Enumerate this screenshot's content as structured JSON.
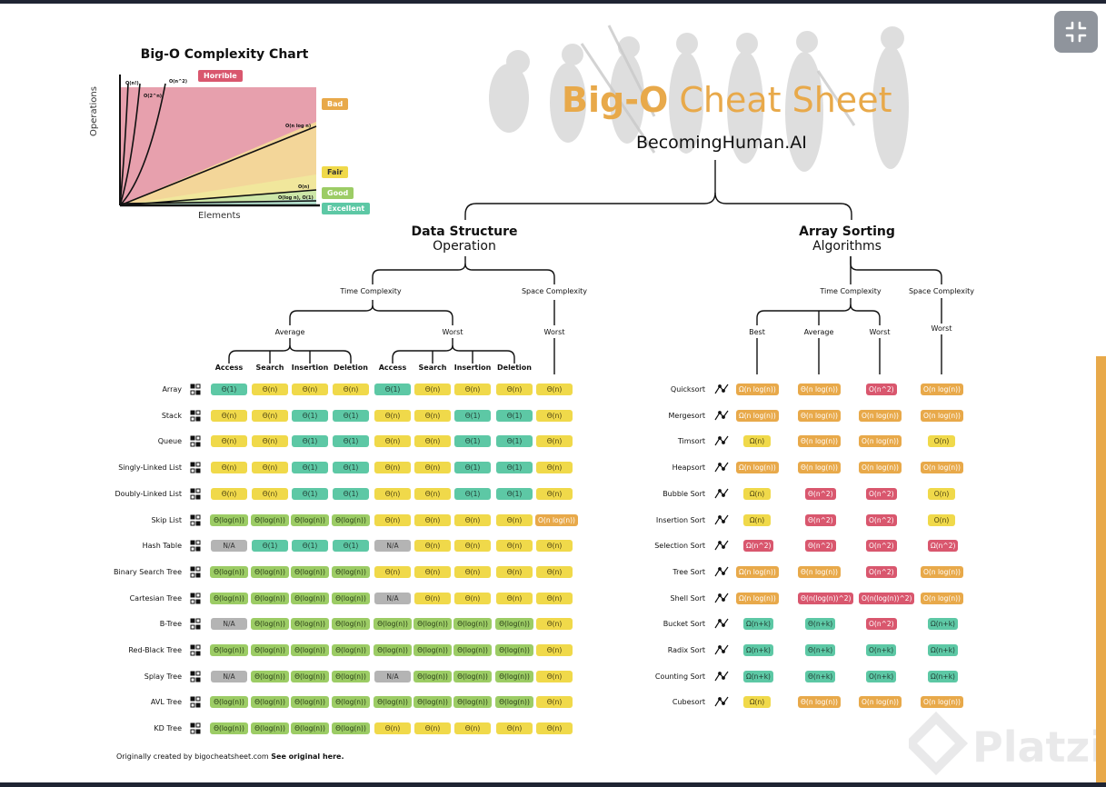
{
  "title": {
    "part1": "Big-O",
    "part2": " Cheat Sheet"
  },
  "subtitle": "BecomingHuman.AI",
  "colors": {
    "horrible": "#d9576e",
    "bad": "#e8a94a",
    "fair": "#f0d94a",
    "good": "#9ccc65",
    "excellent": "#5dc8a5",
    "na": "#b4b4b4",
    "accent": "#e8a94a"
  },
  "complexity_chart": {
    "title": "Big-O Complexity Chart",
    "ylabel": "Operations",
    "xlabel": "Elements",
    "legend": [
      "Horrible",
      "Bad",
      "Fair",
      "Good",
      "Excellent"
    ],
    "curve_labels": [
      "O(n!)",
      "O(2^n)",
      "O(n^2)",
      "O(n log n)",
      "O(n)",
      "O(log n), O(1)"
    ]
  },
  "ds": {
    "title": "Data Structure",
    "subtitle": "Operation",
    "time_label": "Time Complexity",
    "space_label": "Space Complexity",
    "average_label": "Average",
    "worst_label": "Worst",
    "space_worst_label": "Worst",
    "columns": [
      "Access",
      "Search",
      "Insertion",
      "Deletion",
      "Access",
      "Search",
      "Insertion",
      "Deletion"
    ],
    "rows": [
      {
        "name": "Array",
        "icon": "array-icon",
        "cells": [
          [
            "Θ(1)",
            "e"
          ],
          [
            "Θ(n)",
            "f"
          ],
          [
            "Θ(n)",
            "f"
          ],
          [
            "Θ(n)",
            "f"
          ],
          [
            "Θ(1)",
            "e"
          ],
          [
            "Θ(n)",
            "f"
          ],
          [
            "Θ(n)",
            "f"
          ],
          [
            "Θ(n)",
            "f"
          ],
          [
            "Θ(n)",
            "f"
          ]
        ]
      },
      {
        "name": "Stack",
        "icon": "stack-icon",
        "cells": [
          [
            "Θ(n)",
            "f"
          ],
          [
            "Θ(n)",
            "f"
          ],
          [
            "Θ(1)",
            "e"
          ],
          [
            "Θ(1)",
            "e"
          ],
          [
            "Θ(n)",
            "f"
          ],
          [
            "Θ(n)",
            "f"
          ],
          [
            "Θ(1)",
            "e"
          ],
          [
            "Θ(1)",
            "e"
          ],
          [
            "Θ(n)",
            "f"
          ]
        ]
      },
      {
        "name": "Queue",
        "icon": "queue-icon",
        "cells": [
          [
            "Θ(n)",
            "f"
          ],
          [
            "Θ(n)",
            "f"
          ],
          [
            "Θ(1)",
            "e"
          ],
          [
            "Θ(1)",
            "e"
          ],
          [
            "Θ(n)",
            "f"
          ],
          [
            "Θ(n)",
            "f"
          ],
          [
            "Θ(1)",
            "e"
          ],
          [
            "Θ(1)",
            "e"
          ],
          [
            "Θ(n)",
            "f"
          ]
        ]
      },
      {
        "name": "Singly-Linked List",
        "icon": "singly-linked-list-icon",
        "cells": [
          [
            "Θ(n)",
            "f"
          ],
          [
            "Θ(n)",
            "f"
          ],
          [
            "Θ(1)",
            "e"
          ],
          [
            "Θ(1)",
            "e"
          ],
          [
            "Θ(n)",
            "f"
          ],
          [
            "Θ(n)",
            "f"
          ],
          [
            "Θ(1)",
            "e"
          ],
          [
            "Θ(1)",
            "e"
          ],
          [
            "Θ(n)",
            "f"
          ]
        ]
      },
      {
        "name": "Doubly-Linked List",
        "icon": "doubly-linked-list-icon",
        "cells": [
          [
            "Θ(n)",
            "f"
          ],
          [
            "Θ(n)",
            "f"
          ],
          [
            "Θ(1)",
            "e"
          ],
          [
            "Θ(1)",
            "e"
          ],
          [
            "Θ(n)",
            "f"
          ],
          [
            "Θ(n)",
            "f"
          ],
          [
            "Θ(1)",
            "e"
          ],
          [
            "Θ(1)",
            "e"
          ],
          [
            "Θ(n)",
            "f"
          ]
        ]
      },
      {
        "name": "Skip List",
        "icon": "skip-list-icon",
        "cells": [
          [
            "Θ(log(n))",
            "g"
          ],
          [
            "Θ(log(n))",
            "g"
          ],
          [
            "Θ(log(n))",
            "g"
          ],
          [
            "Θ(log(n))",
            "g"
          ],
          [
            "Θ(n)",
            "f"
          ],
          [
            "Θ(n)",
            "f"
          ],
          [
            "Θ(n)",
            "f"
          ],
          [
            "Θ(n)",
            "f"
          ],
          [
            "O(n log(n))",
            "b"
          ]
        ]
      },
      {
        "name": "Hash Table",
        "icon": "hash-table-icon",
        "cells": [
          [
            "N/A",
            "x"
          ],
          [
            "Θ(1)",
            "e"
          ],
          [
            "Θ(1)",
            "e"
          ],
          [
            "Θ(1)",
            "e"
          ],
          [
            "N/A",
            "x"
          ],
          [
            "Θ(n)",
            "f"
          ],
          [
            "Θ(n)",
            "f"
          ],
          [
            "Θ(n)",
            "f"
          ],
          [
            "Θ(n)",
            "f"
          ]
        ]
      },
      {
        "name": "Binary Search Tree",
        "icon": "binary-search-tree-icon",
        "cells": [
          [
            "Θ(log(n))",
            "g"
          ],
          [
            "Θ(log(n))",
            "g"
          ],
          [
            "Θ(log(n))",
            "g"
          ],
          [
            "Θ(log(n))",
            "g"
          ],
          [
            "Θ(n)",
            "f"
          ],
          [
            "Θ(n)",
            "f"
          ],
          [
            "Θ(n)",
            "f"
          ],
          [
            "Θ(n)",
            "f"
          ],
          [
            "Θ(n)",
            "f"
          ]
        ]
      },
      {
        "name": "Cartesian Tree",
        "icon": "cartesian-tree-icon",
        "cells": [
          [
            "Θ(log(n))",
            "g"
          ],
          [
            "Θ(log(n))",
            "g"
          ],
          [
            "Θ(log(n))",
            "g"
          ],
          [
            "Θ(log(n))",
            "g"
          ],
          [
            "N/A",
            "x"
          ],
          [
            "Θ(n)",
            "f"
          ],
          [
            "Θ(n)",
            "f"
          ],
          [
            "Θ(n)",
            "f"
          ],
          [
            "Θ(n)",
            "f"
          ]
        ]
      },
      {
        "name": "B-Tree",
        "icon": "b-tree-icon",
        "cells": [
          [
            "N/A",
            "x"
          ],
          [
            "Θ(log(n))",
            "g"
          ],
          [
            "Θ(log(n))",
            "g"
          ],
          [
            "Θ(log(n))",
            "g"
          ],
          [
            "Θ(log(n))",
            "g"
          ],
          [
            "Θ(log(n))",
            "g"
          ],
          [
            "Θ(log(n))",
            "g"
          ],
          [
            "Θ(log(n))",
            "g"
          ],
          [
            "Θ(n)",
            "f"
          ]
        ]
      },
      {
        "name": "Red-Black Tree",
        "icon": "red-black-tree-icon",
        "cells": [
          [
            "Θ(log(n))",
            "g"
          ],
          [
            "Θ(log(n))",
            "g"
          ],
          [
            "Θ(log(n))",
            "g"
          ],
          [
            "Θ(log(n))",
            "g"
          ],
          [
            "Θ(log(n))",
            "g"
          ],
          [
            "Θ(log(n))",
            "g"
          ],
          [
            "Θ(log(n))",
            "g"
          ],
          [
            "Θ(log(n))",
            "g"
          ],
          [
            "Θ(n)",
            "f"
          ]
        ]
      },
      {
        "name": "Splay Tree",
        "icon": "splay-tree-icon",
        "cells": [
          [
            "N/A",
            "x"
          ],
          [
            "Θ(log(n))",
            "g"
          ],
          [
            "Θ(log(n))",
            "g"
          ],
          [
            "Θ(log(n))",
            "g"
          ],
          [
            "N/A",
            "x"
          ],
          [
            "Θ(log(n))",
            "g"
          ],
          [
            "Θ(log(n))",
            "g"
          ],
          [
            "Θ(log(n))",
            "g"
          ],
          [
            "Θ(n)",
            "f"
          ]
        ]
      },
      {
        "name": "AVL Tree",
        "icon": "avl-tree-icon",
        "cells": [
          [
            "Θ(log(n))",
            "g"
          ],
          [
            "Θ(log(n))",
            "g"
          ],
          [
            "Θ(log(n))",
            "g"
          ],
          [
            "Θ(log(n))",
            "g"
          ],
          [
            "Θ(log(n))",
            "g"
          ],
          [
            "Θ(log(n))",
            "g"
          ],
          [
            "Θ(log(n))",
            "g"
          ],
          [
            "Θ(log(n))",
            "g"
          ],
          [
            "Θ(n)",
            "f"
          ]
        ]
      },
      {
        "name": "KD Tree",
        "icon": "kd-tree-icon",
        "cells": [
          [
            "Θ(log(n))",
            "g"
          ],
          [
            "Θ(log(n))",
            "g"
          ],
          [
            "Θ(log(n))",
            "g"
          ],
          [
            "Θ(log(n))",
            "g"
          ],
          [
            "Θ(n)",
            "f"
          ],
          [
            "Θ(n)",
            "f"
          ],
          [
            "Θ(n)",
            "f"
          ],
          [
            "Θ(n)",
            "f"
          ],
          [
            "Θ(n)",
            "f"
          ]
        ]
      }
    ]
  },
  "sort": {
    "title": "Array Sorting",
    "subtitle": "Algorithms",
    "time_label": "Time Complexity",
    "space_label": "Space Complexity",
    "columns": [
      "Best",
      "Average",
      "Worst",
      "Worst"
    ],
    "rows": [
      {
        "name": "Quicksort",
        "icon": "quicksort-icon",
        "cells": [
          [
            "Ω(n log(n))",
            "b"
          ],
          [
            "Θ(n log(n))",
            "b"
          ],
          [
            "O(n^2)",
            "h"
          ],
          [
            "O(n log(n))",
            "b"
          ]
        ]
      },
      {
        "name": "Mergesort",
        "icon": "mergesort-icon",
        "cells": [
          [
            "Ω(n log(n))",
            "b"
          ],
          [
            "Θ(n log(n))",
            "b"
          ],
          [
            "O(n log(n))",
            "b"
          ],
          [
            "O(n log(n))",
            "b"
          ]
        ]
      },
      {
        "name": "Timsort",
        "icon": "timsort-icon",
        "cells": [
          [
            "Ω(n)",
            "f"
          ],
          [
            "Θ(n log(n))",
            "b"
          ],
          [
            "O(n log(n))",
            "b"
          ],
          [
            "O(n)",
            "f"
          ]
        ]
      },
      {
        "name": "Heapsort",
        "icon": "heapsort-icon",
        "cells": [
          [
            "Ω(n log(n))",
            "b"
          ],
          [
            "Θ(n log(n))",
            "b"
          ],
          [
            "O(n log(n))",
            "b"
          ],
          [
            "O(n log(n))",
            "b"
          ]
        ]
      },
      {
        "name": "Bubble Sort",
        "icon": "bubble-sort-icon",
        "cells": [
          [
            "Ω(n)",
            "f"
          ],
          [
            "Θ(n^2)",
            "h"
          ],
          [
            "O(n^2)",
            "h"
          ],
          [
            "O(n)",
            "f"
          ]
        ]
      },
      {
        "name": "Insertion Sort",
        "icon": "insertion-sort-icon",
        "cells": [
          [
            "Ω(n)",
            "f"
          ],
          [
            "Θ(n^2)",
            "h"
          ],
          [
            "O(n^2)",
            "h"
          ],
          [
            "O(n)",
            "f"
          ]
        ]
      },
      {
        "name": "Selection Sort",
        "icon": "selection-sort-icon",
        "cells": [
          [
            "Ω(n^2)",
            "h"
          ],
          [
            "Θ(n^2)",
            "h"
          ],
          [
            "O(n^2)",
            "h"
          ],
          [
            "Ω(n^2)",
            "h"
          ]
        ]
      },
      {
        "name": "Tree Sort",
        "icon": "tree-sort-icon",
        "cells": [
          [
            "Ω(n log(n))",
            "b"
          ],
          [
            "Θ(n log(n))",
            "b"
          ],
          [
            "O(n^2)",
            "h"
          ],
          [
            "O(n log(n))",
            "b"
          ]
        ]
      },
      {
        "name": "Shell Sort",
        "icon": "shell-sort-icon",
        "cells": [
          [
            "Ω(n log(n))",
            "b"
          ],
          [
            "Θ(n(log(n))^2)",
            "h"
          ],
          [
            "O(n(log(n))^2)",
            "h"
          ],
          [
            "O(n log(n))",
            "b"
          ]
        ]
      },
      {
        "name": "Bucket Sort",
        "icon": "bucket-sort-icon",
        "cells": [
          [
            "Ω(n+k)",
            "e"
          ],
          [
            "Θ(n+k)",
            "e"
          ],
          [
            "O(n^2)",
            "h"
          ],
          [
            "Ω(n+k)",
            "e"
          ]
        ]
      },
      {
        "name": "Radix Sort",
        "icon": "radix-sort-icon",
        "cells": [
          [
            "Ω(n+k)",
            "e"
          ],
          [
            "Θ(n+k)",
            "e"
          ],
          [
            "O(n+k)",
            "e"
          ],
          [
            "Ω(n+k)",
            "e"
          ]
        ]
      },
      {
        "name": "Counting Sort",
        "icon": "counting-sort-icon",
        "cells": [
          [
            "Ω(n+k)",
            "e"
          ],
          [
            "Θ(n+k)",
            "e"
          ],
          [
            "O(n+k)",
            "e"
          ],
          [
            "Ω(n+k)",
            "e"
          ]
        ]
      },
      {
        "name": "Cubesort",
        "icon": "cubesort-icon",
        "cells": [
          [
            "Ω(n)",
            "f"
          ],
          [
            "Θ(n log(n))",
            "b"
          ],
          [
            "O(n log(n))",
            "b"
          ],
          [
            "O(n log(n))",
            "b"
          ]
        ]
      }
    ]
  },
  "footer": {
    "prefix": "Originally created by bigocheatsheet.com",
    "link": "See original here."
  },
  "watermark": "Platzi"
}
